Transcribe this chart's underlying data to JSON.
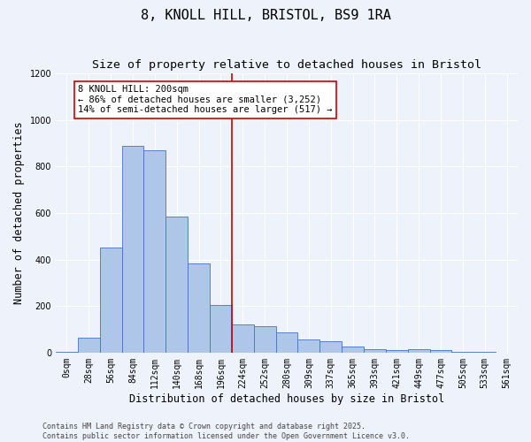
{
  "title": "8, KNOLL HILL, BRISTOL, BS9 1RA",
  "subtitle": "Size of property relative to detached houses in Bristol",
  "xlabel": "Distribution of detached houses by size in Bristol",
  "ylabel": "Number of detached properties",
  "bar_values": [
    5,
    65,
    450,
    890,
    870,
    585,
    385,
    205,
    120,
    115,
    85,
    55,
    50,
    25,
    15,
    10,
    15,
    10,
    5,
    2,
    1
  ],
  "categories": [
    "0sqm",
    "28sqm",
    "56sqm",
    "84sqm",
    "112sqm",
    "140sqm",
    "168sqm",
    "196sqm",
    "224sqm",
    "252sqm",
    "280sqm",
    "309sqm",
    "337sqm",
    "365sqm",
    "393sqm",
    "421sqm",
    "449sqm",
    "477sqm",
    "505sqm",
    "533sqm",
    "561sqm"
  ],
  "bar_color": "#aec6e8",
  "bar_edge_color": "#4472c4",
  "bg_color": "#eef2fb",
  "grid_color": "#ffffff",
  "vline_x_idx": 7,
  "vline_color": "#cc0000",
  "annotation_text": "8 KNOLL HILL: 200sqm\n← 86% of detached houses are smaller (3,252)\n14% of semi-detached houses are larger (517) →",
  "annotation_box_color": "#ffffff",
  "annotation_border_color": "#cc0000",
  "ylim": [
    0,
    1200
  ],
  "yticks": [
    0,
    200,
    400,
    600,
    800,
    1000,
    1200
  ],
  "footer_line1": "Contains HM Land Registry data © Crown copyright and database right 2025.",
  "footer_line2": "Contains public sector information licensed under the Open Government Licence v3.0.",
  "title_fontsize": 11,
  "subtitle_fontsize": 9.5,
  "axis_label_fontsize": 8.5,
  "tick_fontsize": 7,
  "annotation_fontsize": 7.5,
  "footer_fontsize": 6
}
